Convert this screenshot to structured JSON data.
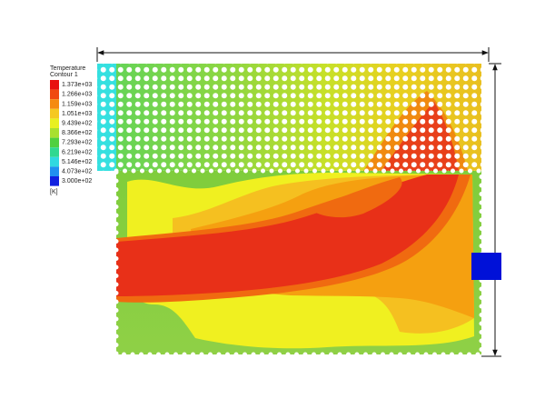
{
  "legend": {
    "title": "Temperature",
    "subtitle": "Contour 1",
    "labels": [
      "1.373e+03",
      "1.266e+03",
      "1.159e+03",
      "1.051e+03",
      "9.439e+02",
      "8.366e+02",
      "7.293e+02",
      "6.219e+02",
      "5.146e+02",
      "4.073e+02",
      "3.000e+02"
    ],
    "unit": "[K]"
  }
}
